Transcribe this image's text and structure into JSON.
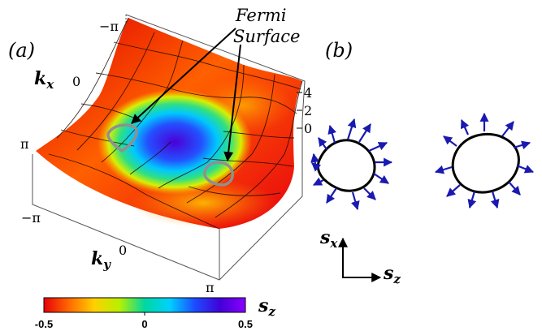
{
  "panel_a": {
    "label": "(a)",
    "callout_line1": "Fermi",
    "callout_line2": "Surface",
    "kx_label": "k",
    "kx_sub": "x",
    "ky_label": "k",
    "ky_sub": "y",
    "kx_ticks": [
      "−π",
      "0",
      "π"
    ],
    "ky_ticks": [
      "−π",
      "0",
      "π"
    ],
    "z_ticks": [
      "4",
      "2",
      "0"
    ]
  },
  "colorbar": {
    "label": "s",
    "label_sub": "z",
    "ticks": [
      "-0.5",
      "0",
      "0.5"
    ],
    "stops": [
      "#e8000a",
      "#ff6a00",
      "#ffd000",
      "#b8f000",
      "#00d8a0",
      "#00d0ff",
      "#1c4cff",
      "#4200d8",
      "#8a00ff"
    ]
  },
  "panel_b": {
    "label": "(b)",
    "axis_vertical_label": "s",
    "axis_vertical_sub": "x",
    "axis_horizontal_label": "s",
    "axis_horizontal_sub": "z",
    "arrow_color": "#1a1ab0"
  },
  "colors": {
    "fermi_contour": "#909090",
    "contour_b": "#000000"
  }
}
